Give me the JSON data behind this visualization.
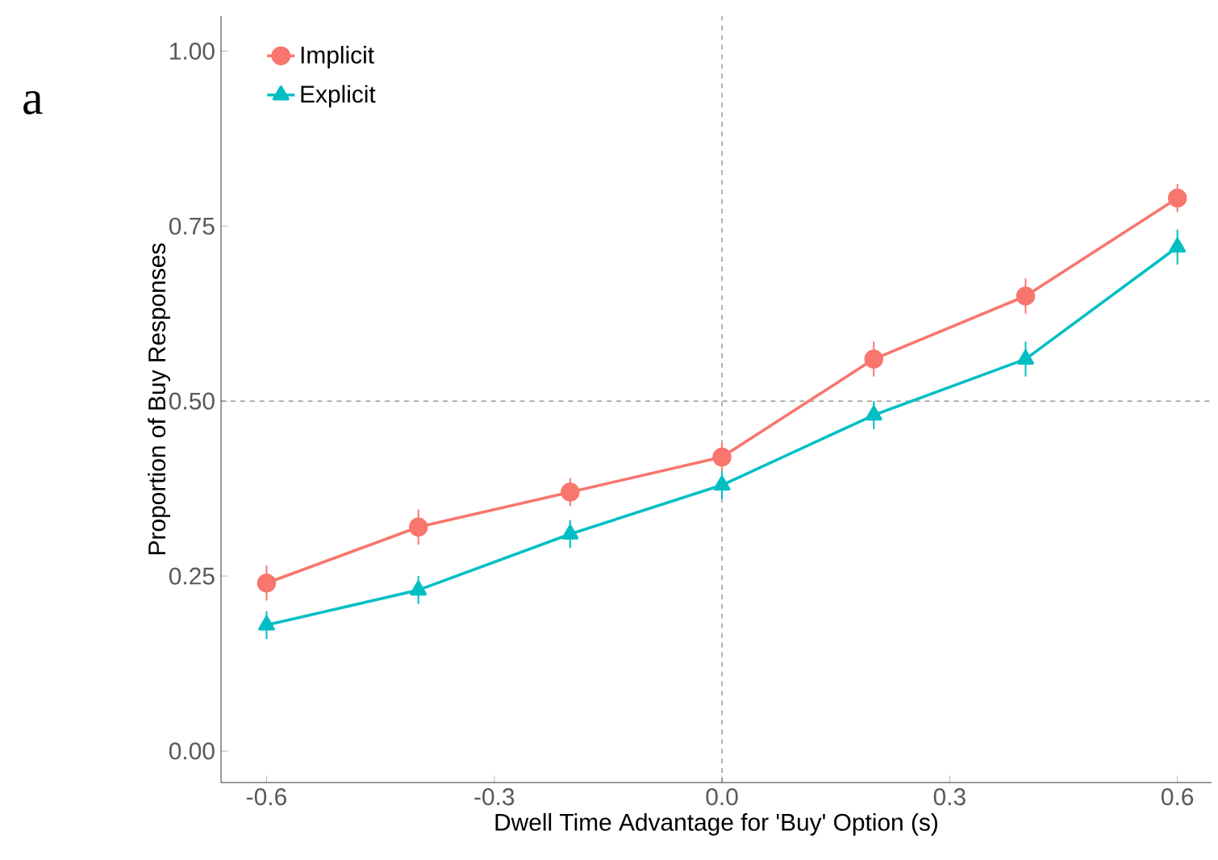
{
  "chart_data": {
    "type": "line",
    "xlabel": "Dwell Time Advantage for 'Buy' Option (s)",
    "ylabel": "Proportion of Buy Responses",
    "annotations": [
      "a"
    ],
    "x": [
      -0.6,
      -0.4,
      -0.2,
      0.0,
      0.2,
      0.4,
      0.6
    ],
    "series": [
      {
        "name": "Implicit",
        "color": "#f8766d",
        "marker": "circle",
        "values": [
          0.24,
          0.32,
          0.37,
          0.42,
          0.56,
          0.65,
          0.79
        ],
        "errors": [
          0.025,
          0.025,
          0.02,
          0.02,
          0.025,
          0.025,
          0.02
        ]
      },
      {
        "name": "Explicit",
        "color": "#00bfc4",
        "marker": "triangle",
        "values": [
          0.18,
          0.23,
          0.31,
          0.38,
          0.48,
          0.56,
          0.72
        ],
        "errors": [
          0.02,
          0.02,
          0.02,
          0.02,
          0.02,
          0.025,
          0.025
        ]
      }
    ],
    "xlim": [
      -0.66,
      0.645
    ],
    "ylim": [
      -0.045,
      1.05
    ],
    "xticks": [
      {
        "value": -0.6,
        "label": "-0.6"
      },
      {
        "value": -0.3,
        "label": "-0.3"
      },
      {
        "value": 0.0,
        "label": "0.0"
      },
      {
        "value": 0.3,
        "label": "0.3"
      },
      {
        "value": 0.6,
        "label": "0.6"
      }
    ],
    "yticks": [
      {
        "value": 0.0,
        "label": "0.00"
      },
      {
        "value": 0.25,
        "label": "0.25"
      },
      {
        "value": 0.5,
        "label": "0.50"
      },
      {
        "value": 0.75,
        "label": "0.75"
      },
      {
        "value": 1.0,
        "label": "1.00"
      }
    ],
    "ref_lines": [
      {
        "axis": "x",
        "value": 0.0,
        "line_style": "dashed"
      },
      {
        "axis": "y",
        "value": 0.5,
        "line_style": "dashed"
      }
    ],
    "grid": false,
    "legend": "top left",
    "line_style": "solid"
  }
}
